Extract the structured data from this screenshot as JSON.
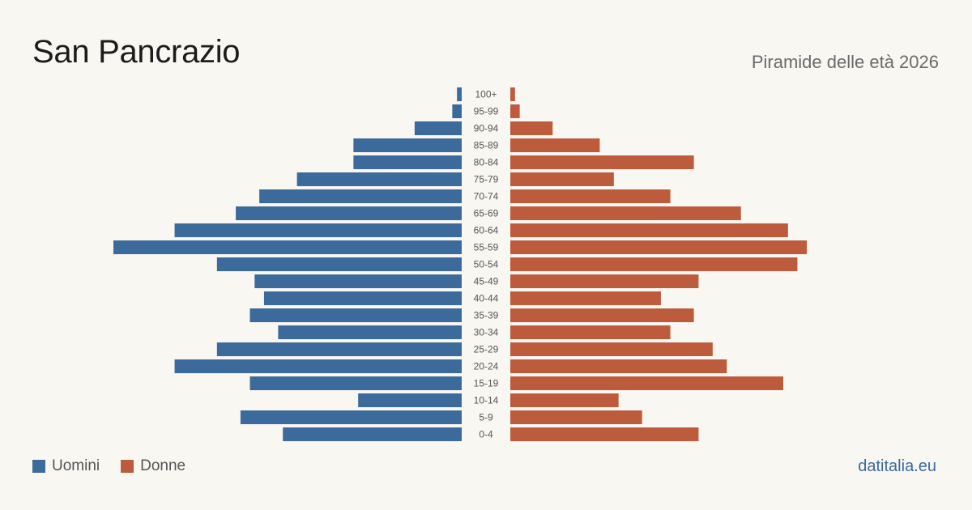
{
  "header": {
    "title": "San Pancrazio",
    "subtitle": "Piramide delle età 2026"
  },
  "legend": {
    "men_label": "Uomini",
    "women_label": "Donne"
  },
  "footer": {
    "brand": "datitalia.eu"
  },
  "colors": {
    "men": "#3b6a9b",
    "women": "#bd5c3c",
    "background": "#f9f7f2",
    "tick_label": "#555555"
  },
  "chart_data": {
    "type": "bar",
    "orientation": "horizontal-pyramid",
    "categories": [
      "100+",
      "95-99",
      "90-94",
      "85-89",
      "80-84",
      "75-79",
      "70-74",
      "65-69",
      "60-64",
      "55-59",
      "50-54",
      "45-49",
      "40-44",
      "35-39",
      "30-34",
      "25-29",
      "20-24",
      "15-19",
      "10-14",
      "5-9",
      "0-4"
    ],
    "series": [
      {
        "name": "Uomini",
        "values": [
          1,
          2,
          10,
          23,
          23,
          35,
          43,
          48,
          61,
          74,
          52,
          44,
          42,
          45,
          39,
          52,
          61,
          45,
          22,
          47,
          38
        ]
      },
      {
        "name": "Donne",
        "values": [
          1,
          2,
          9,
          19,
          39,
          22,
          34,
          49,
          59,
          63,
          61,
          40,
          32,
          39,
          34,
          43,
          46,
          58,
          23,
          28,
          40
        ]
      }
    ],
    "xlim": [
      0,
      74
    ],
    "grid": false,
    "legend_position": "bottom-left"
  }
}
